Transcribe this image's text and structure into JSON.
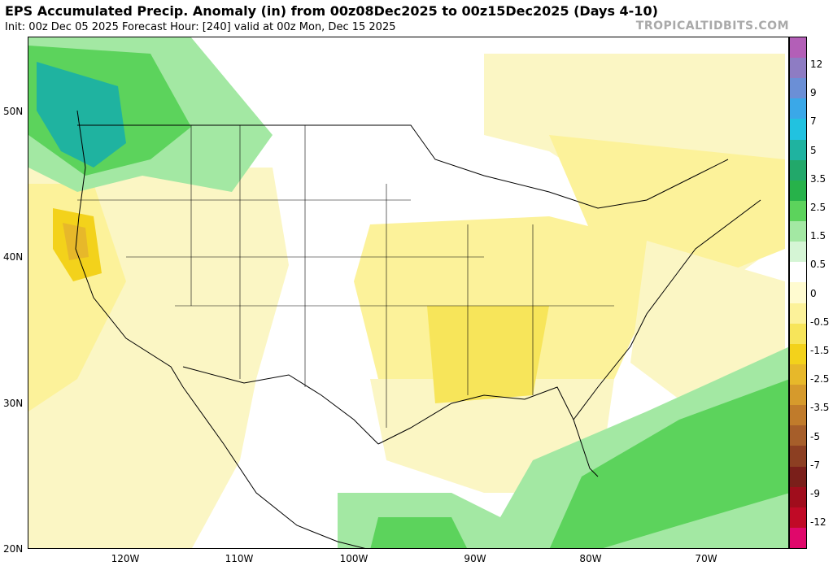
{
  "header": {
    "title": "EPS Accumulated Precip. Anomaly (in) from 00z08Dec2025 to 00z15Dec2025 (Days 4-10)",
    "subtitle": "Init: 00z Dec 05 2025   Forecast Hour: [240]   valid at 00z Mon, Dec 15 2025",
    "brand": "TROPICALTIDBITS.COM"
  },
  "axes": {
    "lat_labels": [
      "50N",
      "40N",
      "30N",
      "20N"
    ],
    "lon_labels": [
      "120W",
      "110W",
      "100W",
      "90W",
      "80W",
      "70W"
    ]
  },
  "colorbar": {
    "labels": [
      "12",
      "9",
      "7",
      "5",
      "3.5",
      "2.5",
      "1.5",
      "0.5",
      "0",
      "-0.5",
      "-1.5",
      "-2.5",
      "-3.5",
      "-5",
      "-7",
      "-9",
      "-12"
    ],
    "colors": [
      "#b35fb7",
      "#8e7cc3",
      "#6b8fd6",
      "#3aa8e8",
      "#21c2e0",
      "#1fb3a0",
      "#22a86a",
      "#27b24a",
      "#5cd35c",
      "#a3e8a3",
      "#d5f5d5",
      "#ffffff",
      "#fffbd0",
      "#fcf29a",
      "#f7e55a",
      "#f3d21b",
      "#e7b82a",
      "#d69a2c",
      "#c07b2b",
      "#a65e2a",
      "#8c3f22",
      "#7a1f1a",
      "#a00d1c",
      "#c00a26",
      "#e0086b"
    ]
  }
}
